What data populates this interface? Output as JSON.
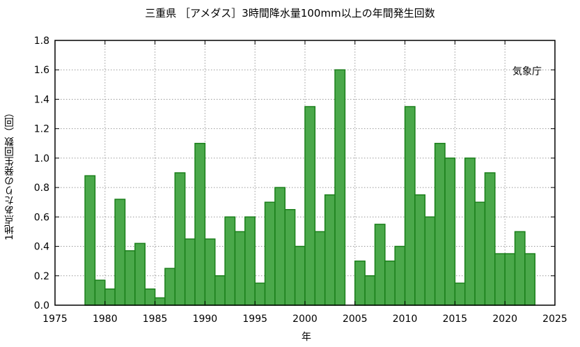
{
  "chart_data": {
    "type": "bar",
    "title": "三重県 ［アメダス］3時間降水量100mm以上の年間発生回数",
    "xlabel": "年",
    "ylabel": "1地点あたりの発生回数（回）",
    "credit": "気象庁",
    "xlim": [
      1975,
      2025
    ],
    "ylim": [
      0,
      1.8
    ],
    "x_ticks": [
      "1975",
      "1980",
      "1985",
      "1990",
      "1995",
      "2000",
      "2005",
      "2010",
      "2015",
      "2020",
      "2025"
    ],
    "y_ticks": [
      "0.0",
      "0.2",
      "0.4",
      "0.6",
      "0.8",
      "1.0",
      "1.2",
      "1.4",
      "1.6",
      "1.8"
    ],
    "grid": true,
    "bar_color": "#4aa84a",
    "bar_edge_color": "#1a7f1a",
    "x": [
      1979,
      1980,
      1981,
      1982,
      1983,
      1984,
      1985,
      1986,
      1987,
      1988,
      1989,
      1990,
      1991,
      1992,
      1993,
      1994,
      1995,
      1996,
      1997,
      1998,
      1999,
      2000,
      2001,
      2002,
      2003,
      2004,
      2005,
      2006,
      2007,
      2008,
      2009,
      2010,
      2011,
      2012,
      2013,
      2014,
      2015,
      2016,
      2017,
      2018,
      2019,
      2020,
      2021,
      2022,
      2023
    ],
    "values": [
      0.88,
      0.17,
      0.11,
      0.72,
      0.37,
      0.42,
      0.11,
      0.05,
      0.25,
      0.9,
      0.45,
      1.1,
      0.45,
      0.2,
      0.6,
      0.5,
      0.6,
      0.15,
      0.7,
      0.8,
      0.65,
      0.4,
      1.35,
      0.5,
      0.75,
      1.6,
      0,
      0.3,
      0.2,
      0.55,
      0.3,
      0.4,
      1.35,
      0.75,
      0.6,
      1.1,
      1.0,
      0.15,
      1.0,
      0.7,
      0.9,
      0.35,
      0.35,
      0.5,
      0.35
    ]
  }
}
